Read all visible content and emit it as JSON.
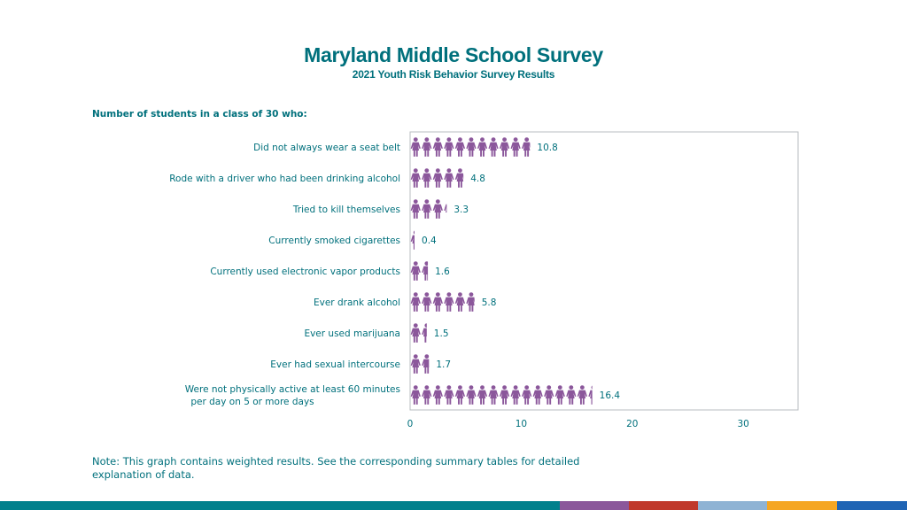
{
  "header": {
    "title": "Maryland Middle School Survey",
    "subtitle": "2021 Youth Risk Behavior Survey Results"
  },
  "section_label": "Number of students in a class of 30 who:",
  "note": "Note: This graph contains weighted results. See the corresponding summary tables for detailed explanation of data.",
  "colors": {
    "teal": "#00707c",
    "person": "#8b579b",
    "footer": [
      "#00808c",
      "#8b579b",
      "#c0392b",
      "#8fb3d4",
      "#f5a623",
      "#1f64b4"
    ]
  },
  "chart_data": {
    "type": "bar",
    "mark": "person-icon",
    "categories": [
      "Did not always wear a seat belt",
      "Rode with a driver who had been drinking alcohol",
      "Tried to kill themselves",
      "Currently smoked cigarettes",
      "Currently used electronic vapor products",
      "Ever drank alcohol",
      "Ever used marijuana",
      "Ever had sexual intercourse",
      "Were not physically active at least 60 minutes per day on 5 or more days"
    ],
    "values": [
      10.8,
      4.8,
      3.3,
      0.4,
      1.6,
      5.8,
      1.5,
      1.7,
      16.4
    ],
    "value_labels": [
      "10.8",
      "4.8",
      "3.3",
      "0.4",
      "1.6",
      "5.8",
      "1.5",
      "1.7",
      "16.4"
    ],
    "xlim": [
      0,
      35
    ],
    "xticks": [
      "0",
      "10",
      "20",
      "30"
    ],
    "grid": false
  }
}
